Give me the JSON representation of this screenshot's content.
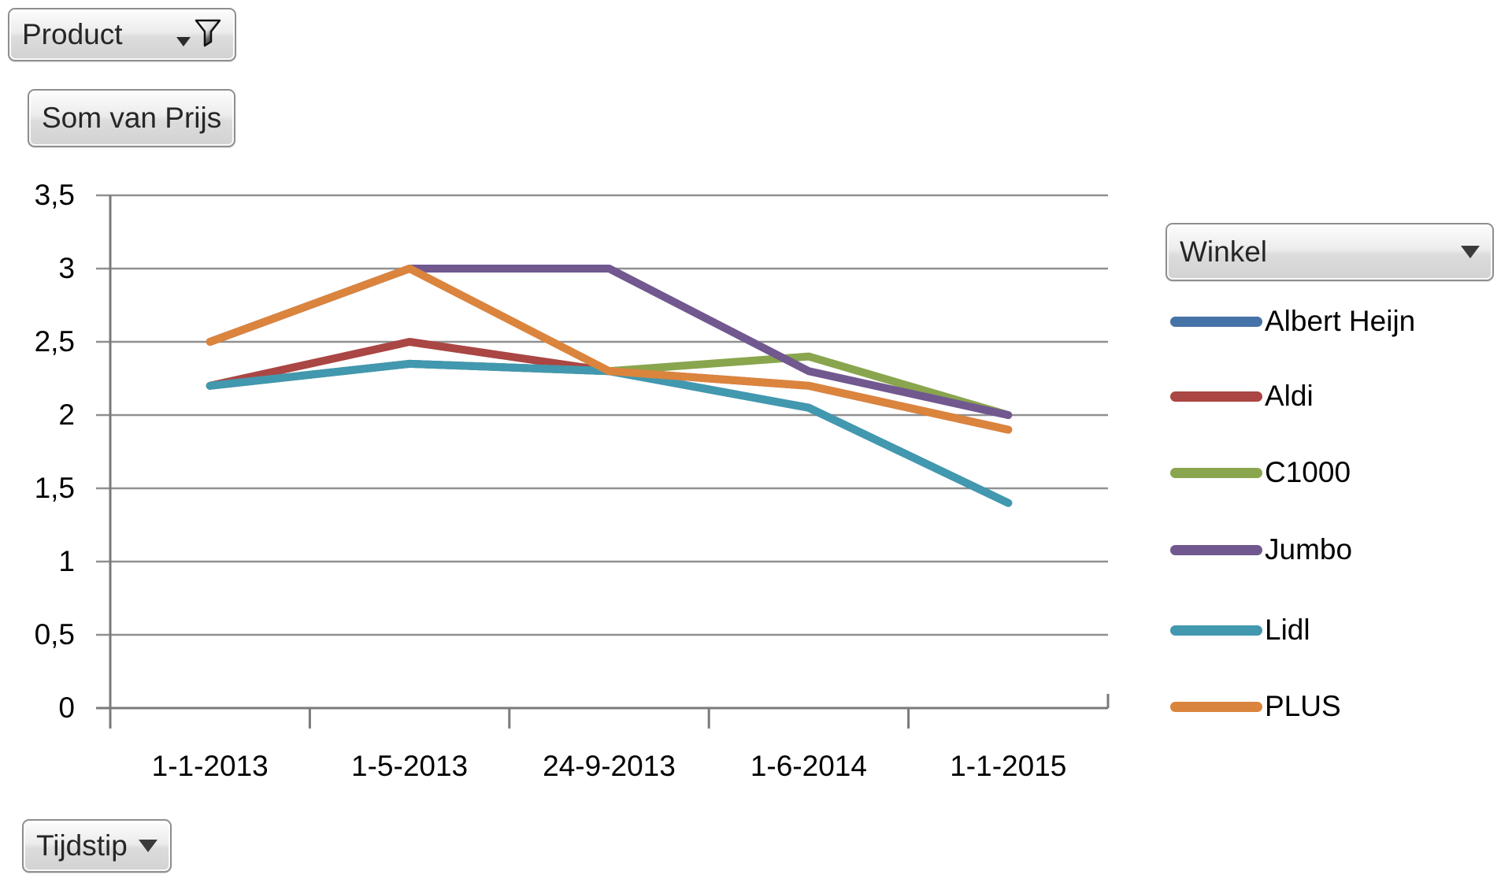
{
  "filter_buttons": {
    "product": {
      "label": "Product"
    },
    "value": {
      "label": "Som van Prijs"
    },
    "legend": {
      "label": "Winkel"
    },
    "axis": {
      "label": "Tijdstip"
    }
  },
  "chart_data": {
    "type": "line",
    "title": "",
    "categories": [
      "1-1-2013",
      "1-5-2013",
      "24-9-2013",
      "1-6-2014",
      "1-1-2015"
    ],
    "series": [
      {
        "name": "Albert Heijn",
        "color": "#4572A7",
        "values": [
          2.2,
          2.35,
          2.3,
          2.05,
          1.4
        ]
      },
      {
        "name": "Aldi",
        "color": "#AA4643",
        "values": [
          2.2,
          2.5,
          2.3,
          2.2,
          1.9
        ]
      },
      {
        "name": "C1000",
        "color": "#89A54E",
        "values": [
          2.2,
          2.35,
          2.3,
          2.4,
          2.0
        ]
      },
      {
        "name": "Jumbo",
        "color": "#71588F",
        "values": [
          2.5,
          3.0,
          3.0,
          2.3,
          2.0
        ]
      },
      {
        "name": "Lidl",
        "color": "#4198AF",
        "values": [
          2.2,
          2.35,
          2.3,
          2.05,
          1.4
        ]
      },
      {
        "name": "PLUS",
        "color": "#DB843D",
        "values": [
          2.5,
          3.0,
          2.3,
          2.2,
          1.9
        ]
      }
    ],
    "ylim": [
      0,
      3.5
    ],
    "ytick_step": 0.5,
    "ytick_labels_ascending": [
      "0",
      "0,5",
      "1",
      "1,5",
      "2",
      "2,5",
      "3",
      "3,5"
    ],
    "decimal_separator": ",",
    "grid": true,
    "legend_position": "right"
  },
  "colors": {
    "axis": "#7a7a7a",
    "gridline": "#909090",
    "text": "#000000"
  }
}
